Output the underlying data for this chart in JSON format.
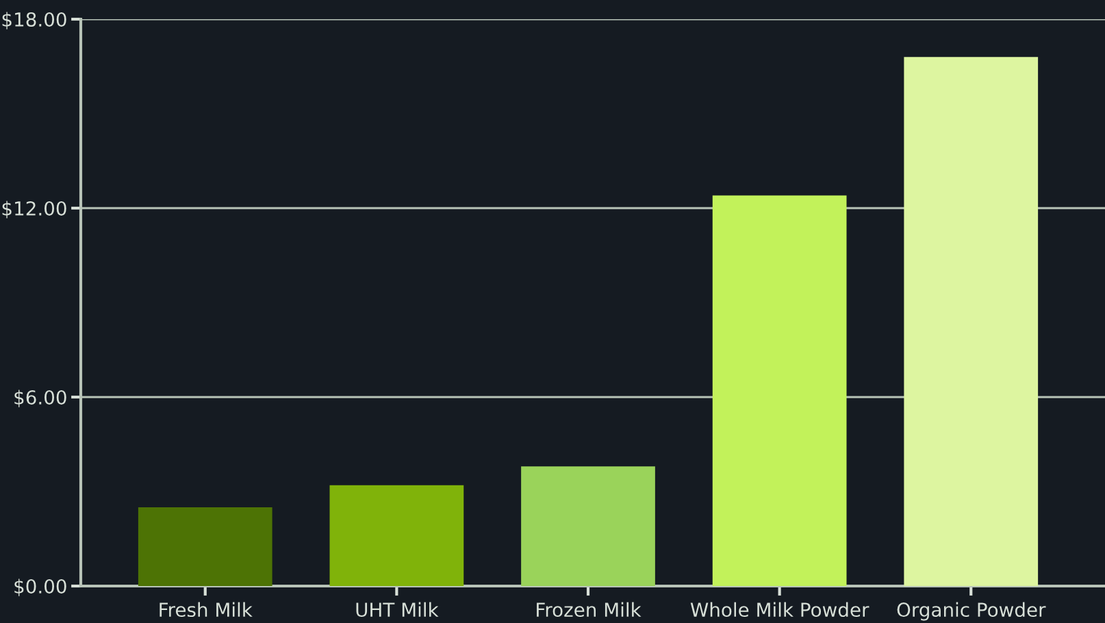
{
  "chart_data": {
    "type": "bar",
    "categories": [
      "Fresh Milk",
      "UHT Milk",
      "Frozen Milk",
      "Whole Milk Powder",
      "Organic Powder"
    ],
    "values": [
      2.5,
      3.2,
      3.8,
      12.4,
      16.8
    ],
    "colors": [
      "#4d7305",
      "#80b30a",
      "#9ad35a",
      "#c2f25a",
      "#ddf5a0"
    ],
    "ylim": [
      0,
      18
    ],
    "yticks": [
      {
        "value": 0,
        "label": "$0.00"
      },
      {
        "value": 6,
        "label": "$6.00"
      },
      {
        "value": 12,
        "label": "$12.00"
      },
      {
        "value": 18,
        "label": "$18.00"
      }
    ],
    "grid": "y"
  }
}
